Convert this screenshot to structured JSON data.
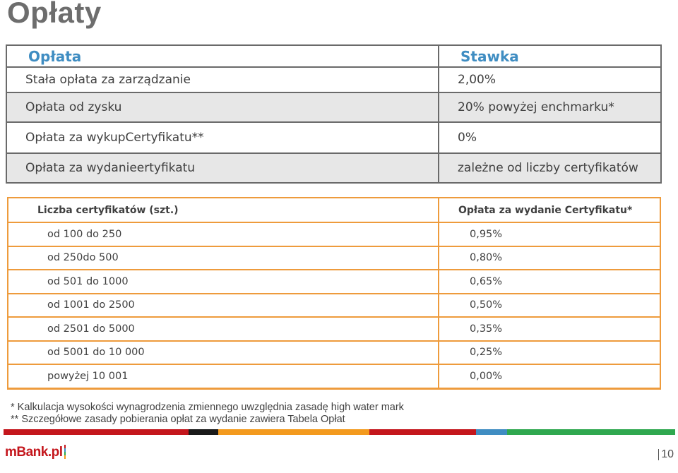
{
  "page": {
    "title": "Opłaty",
    "page_number": "10"
  },
  "fees_table": {
    "headers": [
      "Opłata",
      "Stawka"
    ],
    "rows": [
      [
        "Stała opłata za zarządzanie",
        "2,00%"
      ],
      [
        "Opłata od zysku",
        "20% powyżej enchmarku*"
      ],
      [
        "Opłata za wykupCertyfikatu**",
        "0%"
      ],
      [
        "Opłata za wydanieertyfikatu",
        "zależne od liczby certyfikatów"
      ]
    ]
  },
  "cert_table": {
    "headers": [
      "Liczba certyfikatów (szt.)",
      "Opłata za wydanie Certyfikatu*"
    ],
    "rows": [
      [
        "od 100 do 250",
        "0,95%"
      ],
      [
        "od 250do 500",
        "0,80%"
      ],
      [
        "od 501 do 1000",
        "0,65%"
      ],
      [
        "od 1001 do 2500",
        "0,50%"
      ],
      [
        "od 2501 do 5000",
        "0,35%"
      ],
      [
        "od 5001 do 10 000",
        "0,25%"
      ],
      [
        "powyżej 10 001",
        "0,00%"
      ]
    ]
  },
  "footnotes": [
    "* Kalkulacja wysokości wynagrodzenia zmiennego uwzględnia zasadę high water mark",
    "** Szczegółowe zasady pobierania opłat za wydanie zawiera Tabela Opłat"
  ],
  "footer": {
    "logo_text": "mBank.pl",
    "stripe_colors": [
      "#c4161c",
      "#1a1a1a",
      "#f39a1e",
      "#c4161c",
      "#3f8dc2",
      "#2fa84f"
    ]
  },
  "colors": {
    "accent_blue": "#3f8dc2",
    "table_orange": "#ee9b3c",
    "row_gray": "#e7e7e7"
  }
}
